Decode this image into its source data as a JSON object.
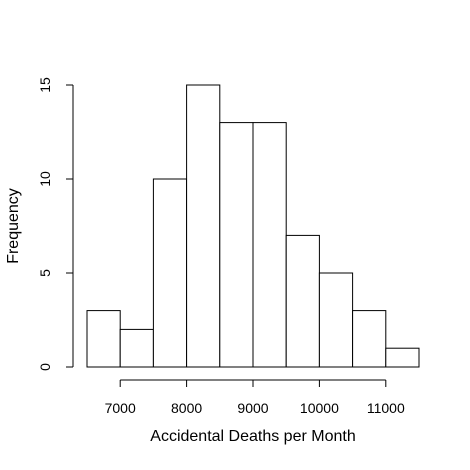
{
  "chart_data": {
    "type": "bar",
    "histogram": true,
    "title": "",
    "xlabel": "Accidental Deaths per Month",
    "ylabel": "Frequency",
    "bins": [
      {
        "start": 6500,
        "end": 7000,
        "count": 3
      },
      {
        "start": 7000,
        "end": 7500,
        "count": 2
      },
      {
        "start": 7500,
        "end": 8000,
        "count": 10
      },
      {
        "start": 8000,
        "end": 8500,
        "count": 15
      },
      {
        "start": 8500,
        "end": 9000,
        "count": 13
      },
      {
        "start": 9000,
        "end": 9500,
        "count": 13
      },
      {
        "start": 9500,
        "end": 10000,
        "count": 7
      },
      {
        "start": 10000,
        "end": 10500,
        "count": 5
      },
      {
        "start": 10500,
        "end": 11000,
        "count": 3
      },
      {
        "start": 11000,
        "end": 11500,
        "count": 1
      }
    ],
    "xlim": [
      6500,
      11500
    ],
    "ylim": [
      0,
      15
    ],
    "xticks": [
      7000,
      8000,
      9000,
      10000,
      11000
    ],
    "yticks": [
      0,
      5,
      10,
      15
    ],
    "grid": false,
    "legend": "none"
  }
}
